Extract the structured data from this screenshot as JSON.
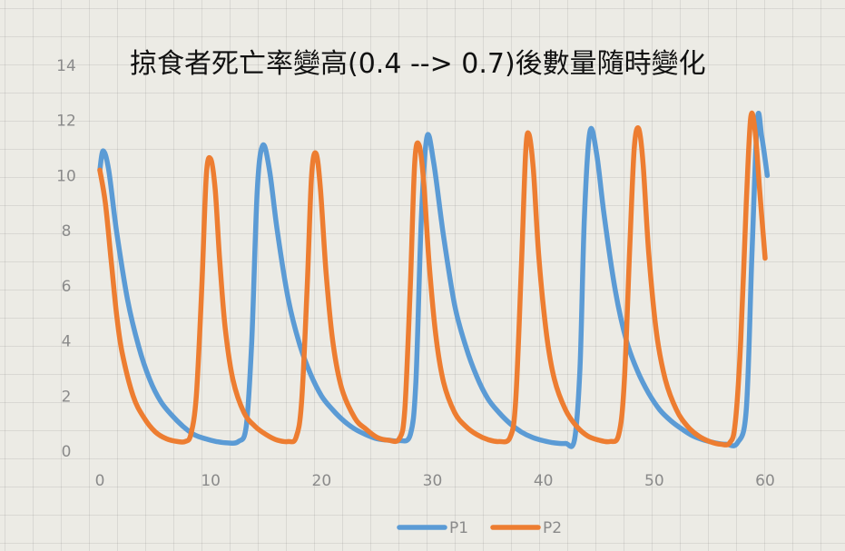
{
  "chart_data": {
    "type": "line",
    "title": "掠食者死亡率變高(0.4 --> 0.7)後數量隨時變化",
    "xlabel": "",
    "ylabel": "",
    "xlim": [
      0,
      60
    ],
    "ylim": [
      0,
      14
    ],
    "xticks": [
      "0",
      "10",
      "20",
      "30",
      "40",
      "50",
      "60"
    ],
    "yticks": [
      "0",
      "2",
      "4",
      "6",
      "8",
      "10",
      "12",
      "14"
    ],
    "grid": false,
    "legend_position": "bottom",
    "series": [
      {
        "name": "P1",
        "color": "#5b9bd5",
        "points": [
          [
            0,
            10.2
          ],
          [
            0.3,
            10.9
          ],
          [
            0.8,
            10.2
          ],
          [
            1.5,
            8.0
          ],
          [
            2.5,
            5.5
          ],
          [
            3.5,
            3.8
          ],
          [
            4.5,
            2.6
          ],
          [
            5.5,
            1.8
          ],
          [
            6.5,
            1.3
          ],
          [
            7.5,
            0.9
          ],
          [
            8.5,
            0.6
          ],
          [
            9.5,
            0.45
          ],
          [
            10.5,
            0.35
          ],
          [
            11.5,
            0.3
          ],
          [
            12.5,
            0.35
          ],
          [
            13.2,
            0.9
          ],
          [
            13.7,
            4.0
          ],
          [
            14.2,
            9.5
          ],
          [
            14.7,
            11.1
          ],
          [
            15.3,
            10.2
          ],
          [
            16,
            8.0
          ],
          [
            17,
            5.5
          ],
          [
            18,
            3.9
          ],
          [
            19,
            2.8
          ],
          [
            20,
            2.0
          ],
          [
            21,
            1.5
          ],
          [
            22,
            1.1
          ],
          [
            23,
            0.8
          ],
          [
            24,
            0.6
          ],
          [
            25,
            0.45
          ],
          [
            26,
            0.4
          ],
          [
            27,
            0.38
          ],
          [
            28,
            0.6
          ],
          [
            28.5,
            2.5
          ],
          [
            29,
            8.5
          ],
          [
            29.5,
            11.4
          ],
          [
            30.1,
            10.5
          ],
          [
            31,
            7.8
          ],
          [
            32,
            5.3
          ],
          [
            33,
            3.8
          ],
          [
            34,
            2.7
          ],
          [
            35,
            1.9
          ],
          [
            36,
            1.4
          ],
          [
            37,
            1.0
          ],
          [
            38,
            0.7
          ],
          [
            39,
            0.5
          ],
          [
            40,
            0.38
          ],
          [
            41,
            0.3
          ],
          [
            42,
            0.28
          ],
          [
            42.8,
            0.4
          ],
          [
            43.3,
            3.0
          ],
          [
            43.7,
            8.5
          ],
          [
            44.2,
            11.6
          ],
          [
            44.8,
            10.8
          ],
          [
            45.5,
            8.5
          ],
          [
            46.5,
            5.8
          ],
          [
            47.5,
            4.0
          ],
          [
            48.5,
            2.9
          ],
          [
            49.5,
            2.1
          ],
          [
            50.5,
            1.5
          ],
          [
            51.5,
            1.1
          ],
          [
            52.5,
            0.8
          ],
          [
            53.5,
            0.55
          ],
          [
            54.5,
            0.4
          ],
          [
            55.5,
            0.3
          ],
          [
            56.5,
            0.25
          ],
          [
            57.5,
            0.3
          ],
          [
            58.3,
            1.5
          ],
          [
            58.8,
            7.0
          ],
          [
            59.3,
            12.0
          ],
          [
            59.7,
            11.4
          ],
          [
            60.2,
            10.0
          ]
        ]
      },
      {
        "name": "P2",
        "color": "#ed7d31",
        "points": [
          [
            0,
            10.2
          ],
          [
            0.5,
            9.0
          ],
          [
            1,
            7.0
          ],
          [
            1.5,
            5.0
          ],
          [
            2,
            3.6
          ],
          [
            3,
            2.0
          ],
          [
            4,
            1.2
          ],
          [
            5,
            0.7
          ],
          [
            6,
            0.45
          ],
          [
            7,
            0.35
          ],
          [
            7.7,
            0.35
          ],
          [
            8.2,
            0.6
          ],
          [
            8.7,
            2.0
          ],
          [
            9.2,
            6.0
          ],
          [
            9.6,
            10.0
          ],
          [
            10,
            10.6
          ],
          [
            10.4,
            9.5
          ],
          [
            10.8,
            7.0
          ],
          [
            11.3,
            4.5
          ],
          [
            12,
            2.6
          ],
          [
            13,
            1.4
          ],
          [
            14,
            0.9
          ],
          [
            15,
            0.6
          ],
          [
            16,
            0.4
          ],
          [
            17,
            0.35
          ],
          [
            17.7,
            0.5
          ],
          [
            18.2,
            1.8
          ],
          [
            18.7,
            6.0
          ],
          [
            19.1,
            10.0
          ],
          [
            19.5,
            10.8
          ],
          [
            19.9,
            9.5
          ],
          [
            20.4,
            6.5
          ],
          [
            21,
            4.0
          ],
          [
            21.8,
            2.3
          ],
          [
            23,
            1.2
          ],
          [
            24,
            0.8
          ],
          [
            25,
            0.5
          ],
          [
            26,
            0.4
          ],
          [
            27,
            0.45
          ],
          [
            27.5,
            1.5
          ],
          [
            28,
            6.0
          ],
          [
            28.4,
            10.5
          ],
          [
            28.8,
            11.1
          ],
          [
            29.2,
            9.8
          ],
          [
            29.7,
            6.8
          ],
          [
            30.3,
            4.2
          ],
          [
            31,
            2.5
          ],
          [
            32,
            1.4
          ],
          [
            33,
            0.9
          ],
          [
            34,
            0.6
          ],
          [
            35,
            0.42
          ],
          [
            36,
            0.35
          ],
          [
            37,
            0.5
          ],
          [
            37.5,
            1.8
          ],
          [
            38,
            6.5
          ],
          [
            38.4,
            10.8
          ],
          [
            38.7,
            11.5
          ],
          [
            39.1,
            10.2
          ],
          [
            39.6,
            7.0
          ],
          [
            40.3,
            4.2
          ],
          [
            41,
            2.6
          ],
          [
            42,
            1.5
          ],
          [
            43,
            0.9
          ],
          [
            44,
            0.55
          ],
          [
            45,
            0.4
          ],
          [
            46,
            0.35
          ],
          [
            46.8,
            0.6
          ],
          [
            47.3,
            2.5
          ],
          [
            47.8,
            7.5
          ],
          [
            48.2,
            11.0
          ],
          [
            48.6,
            11.7
          ],
          [
            49,
            10.4
          ],
          [
            49.5,
            7.2
          ],
          [
            50.2,
            4.3
          ],
          [
            51,
            2.6
          ],
          [
            52,
            1.5
          ],
          [
            53,
            0.9
          ],
          [
            54,
            0.55
          ],
          [
            55,
            0.35
          ],
          [
            56,
            0.25
          ],
          [
            56.8,
            0.3
          ],
          [
            57.3,
            1.0
          ],
          [
            57.8,
            4.0
          ],
          [
            58.3,
            9.0
          ],
          [
            58.7,
            12.1
          ],
          [
            59.1,
            11.6
          ],
          [
            59.5,
            9.5
          ],
          [
            60,
            7.0
          ]
        ]
      }
    ]
  }
}
